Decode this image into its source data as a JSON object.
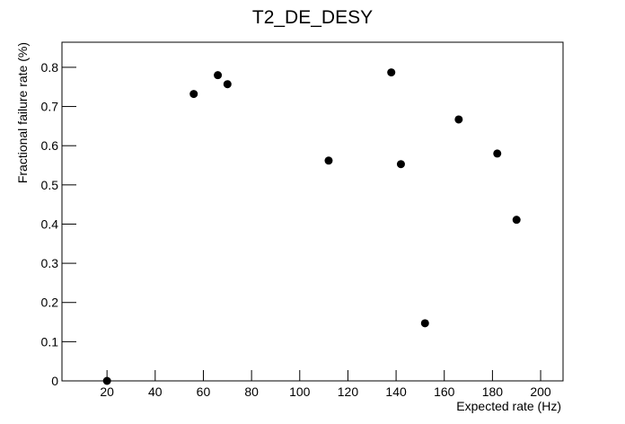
{
  "chart_data": {
    "type": "scatter",
    "title": "T2_DE_DESY",
    "x_label": "Expected rate (Hz)",
    "y_label": "Fractional failure rate (%)",
    "series": [
      {
        "color": "#000000",
        "x": [
          20,
          56,
          66,
          70,
          112,
          138,
          142,
          152,
          166,
          182,
          190
        ],
        "values": [
          0,
          0.732,
          0.78,
          0.757,
          0.562,
          0.787,
          0.553,
          0.147,
          0.667,
          0.58,
          0.411
        ]
      }
    ],
    "xlim": [
      1.3,
      209.3
    ],
    "xticks": [
      20,
      40,
      60,
      80,
      100,
      120,
      140,
      160,
      180,
      200
    ],
    "ylim": [
      0,
      0.864
    ],
    "yticks": [
      0,
      0.1,
      0.2,
      0.3,
      0.4,
      0.5,
      0.6,
      0.7,
      0.8
    ],
    "grid": false
  }
}
